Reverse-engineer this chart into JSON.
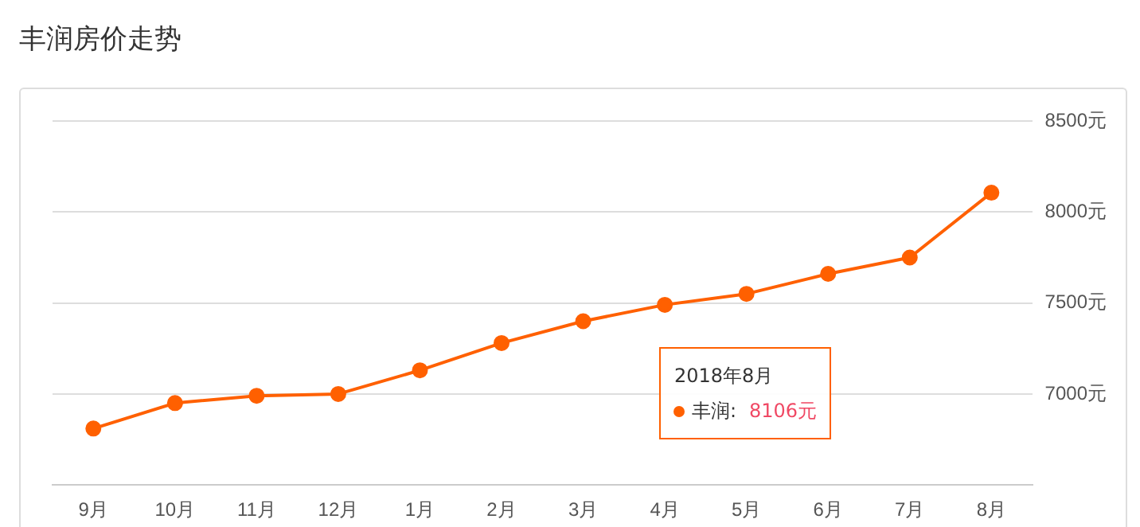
{
  "chart_data": {
    "type": "line",
    "title": "丰润房价走势",
    "categories": [
      "9月",
      "10月",
      "11月",
      "12月",
      "1月",
      "2月",
      "3月",
      "4月",
      "5月",
      "6月",
      "7月",
      "8月"
    ],
    "series": [
      {
        "name": "丰润",
        "color": "#ff6000",
        "values": [
          6810,
          6950,
          6990,
          7000,
          7130,
          7280,
          7400,
          7490,
          7550,
          7660,
          7750,
          8106
        ]
      }
    ],
    "ylim": [
      6500,
      8500
    ],
    "yticks": [
      {
        "value": 7000,
        "label": "7000元"
      },
      {
        "value": 7500,
        "label": "7500元"
      },
      {
        "value": 8000,
        "label": "8000元"
      },
      {
        "value": 8500,
        "label": "8500元"
      }
    ],
    "grid": "y",
    "legend": "bottom right",
    "marker": "circle",
    "line_style": "solid",
    "annotations": [
      "2018年8月",
      ":",
      "8106元"
    ]
  }
}
